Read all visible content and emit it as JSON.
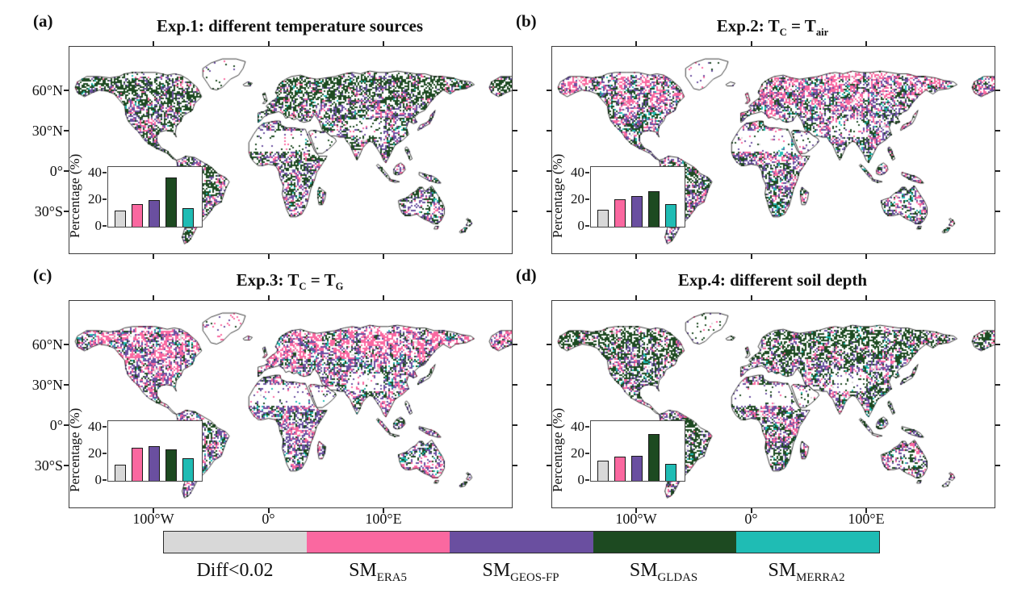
{
  "figure": {
    "background": "#ffffff",
    "lat_ticks": [
      "60°N",
      "30°N",
      "0°",
      "30°S"
    ],
    "lon_ticks": [
      "100°W",
      "0°",
      "100°E"
    ],
    "inset_ylabel": "Percentage (%)",
    "inset_yticks": [
      "40",
      "20",
      "0"
    ]
  },
  "panels": [
    {
      "letter": "(a)",
      "title": "Exp.1: different temperature sources",
      "title_segments": [
        {
          "t": "Exp.1: different temperature sources"
        }
      ]
    },
    {
      "letter": "(b)",
      "title": "Exp.2: T_C = T_air",
      "title_segments": [
        {
          "t": "Exp.2: T"
        },
        {
          "t": "C",
          "sub": true
        },
        {
          "t": " = T"
        },
        {
          "t": "air",
          "sub": true
        }
      ]
    },
    {
      "letter": "(c)",
      "title": "Exp.3: T_C = T_G",
      "title_segments": [
        {
          "t": "Exp.3: T"
        },
        {
          "t": "C",
          "sub": true
        },
        {
          "t": " = T"
        },
        {
          "t": "G",
          "sub": true
        }
      ]
    },
    {
      "letter": "(d)",
      "title": "Exp.4: different soil depth",
      "title_segments": [
        {
          "t": "Exp.4: different soil depth"
        }
      ]
    }
  ],
  "legend": {
    "entries": [
      {
        "label": "Diff<0.02",
        "label_segments": [
          {
            "t": "Diff<0.02"
          }
        ],
        "color": "#d8d8d8"
      },
      {
        "label": "SM_ERA5",
        "label_segments": [
          {
            "t": "SM"
          },
          {
            "t": "ERA5",
            "sub": true
          }
        ],
        "color": "#fa68a0"
      },
      {
        "label": "SM_GEOS-FP",
        "label_segments": [
          {
            "t": "SM"
          },
          {
            "t": "GEOS-FP",
            "sub": true
          }
        ],
        "color": "#6a4fa0"
      },
      {
        "label": "SM_GLDAS",
        "label_segments": [
          {
            "t": "SM"
          },
          {
            "t": "GLDAS",
            "sub": true
          }
        ],
        "color": "#1d4a21"
      },
      {
        "label": "SM_MERRA2",
        "label_segments": [
          {
            "t": "SM"
          },
          {
            "t": "MERRA2",
            "sub": true
          }
        ],
        "color": "#1fbcb4"
      }
    ]
  },
  "chart_data": [
    {
      "type": "bar",
      "title": "Exp.1: different temperature sources",
      "categories": [
        "Diff<0.02",
        "SM_ERA5",
        "SM_GEOS-FP",
        "SM_GLDAS",
        "SM_MERRA2"
      ],
      "values": [
        12,
        17,
        20,
        37,
        14
      ],
      "colors": [
        "#d8d8d8",
        "#fa68a0",
        "#6a4fa0",
        "#1d4a21",
        "#1fbcb4"
      ],
      "xlabel": "",
      "ylabel": "Percentage (%)",
      "ylim": [
        0,
        45
      ],
      "yticks": [
        0,
        20,
        40
      ]
    },
    {
      "type": "bar",
      "title": "Exp.2: T_C = T_air",
      "categories": [
        "Diff<0.02",
        "SM_ERA5",
        "SM_GEOS-FP",
        "SM_GLDAS",
        "SM_MERRA2"
      ],
      "values": [
        13,
        21,
        23,
        27,
        17
      ],
      "colors": [
        "#d8d8d8",
        "#fa68a0",
        "#6a4fa0",
        "#1d4a21",
        "#1fbcb4"
      ],
      "xlabel": "",
      "ylabel": "Percentage (%)",
      "ylim": [
        0,
        45
      ],
      "yticks": [
        0,
        20,
        40
      ]
    },
    {
      "type": "bar",
      "title": "Exp.3: T_C = T_G",
      "categories": [
        "Diff<0.02",
        "SM_ERA5",
        "SM_GEOS-FP",
        "SM_GLDAS",
        "SM_MERRA2"
      ],
      "values": [
        12,
        25,
        26,
        24,
        17
      ],
      "colors": [
        "#d8d8d8",
        "#fa68a0",
        "#6a4fa0",
        "#1d4a21",
        "#1fbcb4"
      ],
      "xlabel": "",
      "ylabel": "Percentage (%)",
      "ylim": [
        0,
        45
      ],
      "yticks": [
        0,
        20,
        40
      ]
    },
    {
      "type": "bar",
      "title": "Exp.4: different soil depth",
      "categories": [
        "Diff<0.02",
        "SM_ERA5",
        "SM_GEOS-FP",
        "SM_GLDAS",
        "SM_MERRA2"
      ],
      "values": [
        15,
        18,
        19,
        35,
        13
      ],
      "colors": [
        "#d8d8d8",
        "#fa68a0",
        "#6a4fa0",
        "#1d4a21",
        "#1fbcb4"
      ],
      "xlabel": "",
      "ylabel": "Percentage (%)",
      "ylim": [
        0,
        45
      ],
      "yticks": [
        0,
        20,
        40
      ]
    }
  ]
}
